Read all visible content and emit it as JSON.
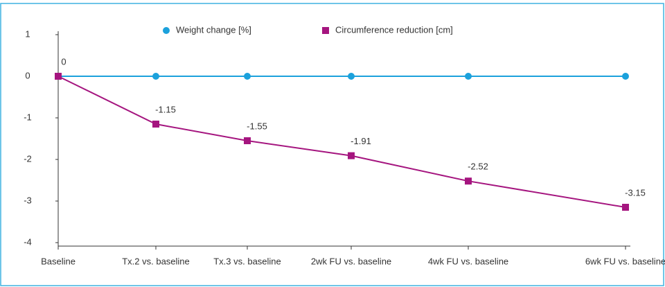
{
  "chart_data": {
    "type": "line",
    "categories": [
      "Baseline",
      "Tx.2 vs. baseline",
      "Tx.3 vs. baseline",
      "2wk FU vs. baseline",
      "4wk FU vs. baseline",
      "6wk FU vs. baseline"
    ],
    "series": [
      {
        "name": "Weight change [%]",
        "color": "#1ba1dc",
        "marker": "circle",
        "values": [
          0,
          0,
          0,
          0,
          0,
          0
        ]
      },
      {
        "name": "Circumference reduction [cm]",
        "color": "#a5157f",
        "marker": "square",
        "values": [
          0,
          -1.15,
          -1.55,
          -1.91,
          -2.52,
          -3.15
        ],
        "show_labels": true
      }
    ],
    "ylim": [
      -4,
      1
    ],
    "yticks": [
      1,
      0,
      -1,
      -2,
      -3,
      -4
    ],
    "grid": false
  }
}
